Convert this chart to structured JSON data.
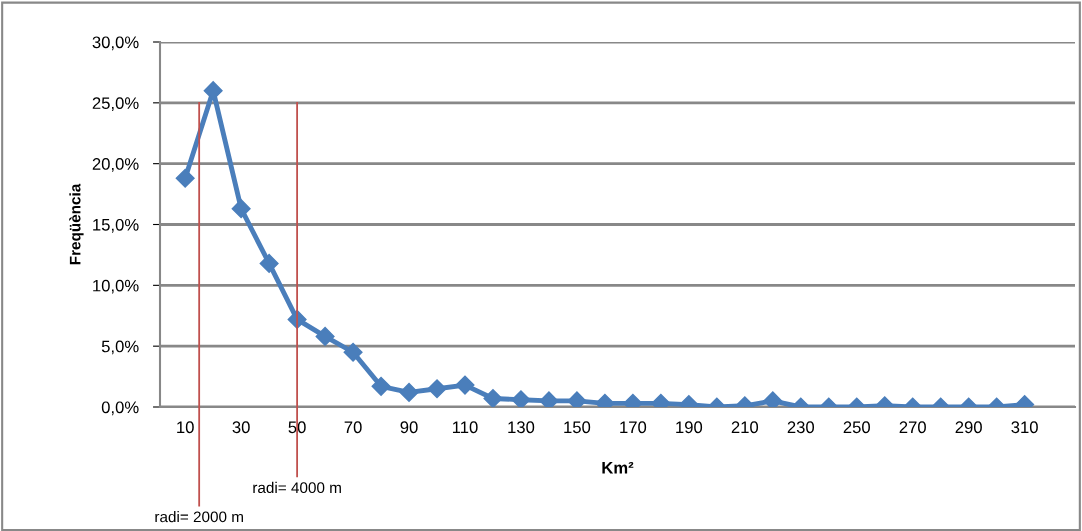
{
  "chart_data": {
    "type": "line",
    "ylabel": "Freqüència",
    "xlabel": "Km²",
    "x": [
      10,
      20,
      30,
      40,
      50,
      60,
      70,
      80,
      90,
      100,
      110,
      120,
      130,
      140,
      150,
      160,
      170,
      180,
      190,
      200,
      210,
      220,
      230,
      240,
      250,
      260,
      270,
      280,
      290,
      300,
      310
    ],
    "series": [
      {
        "color": "#4a7ebb",
        "values": [
          18.8,
          26.0,
          16.3,
          11.8,
          7.2,
          5.8,
          4.5,
          1.7,
          1.2,
          1.5,
          1.8,
          0.7,
          0.6,
          0.5,
          0.5,
          0.3,
          0.3,
          0.3,
          0.2,
          0.0,
          0.1,
          0.5,
          0.0,
          0.0,
          0.0,
          0.1,
          0.0,
          0.0,
          0.0,
          0.0,
          0.2
        ]
      }
    ],
    "xlim": [
      1,
      328
    ],
    "xticks": [
      10,
      30,
      50,
      70,
      90,
      110,
      130,
      150,
      170,
      190,
      210,
      230,
      250,
      270,
      290,
      310
    ],
    "ylim": [
      0,
      30
    ],
    "yticks": [
      {
        "value": 0,
        "label": "0,0%"
      },
      {
        "value": 5,
        "label": "5,0%"
      },
      {
        "value": 10,
        "label": "10,0%"
      },
      {
        "value": 15,
        "label": "15,0%"
      },
      {
        "value": 20,
        "label": "20,0%"
      },
      {
        "value": 25,
        "label": "25,0%"
      },
      {
        "value": 30,
        "label": "30,0%"
      }
    ],
    "ref_lines": [
      {
        "axis": "x",
        "value": 15,
        "color": "#c0504d"
      },
      {
        "axis": "x",
        "value": 50,
        "color": "#c0504d"
      }
    ],
    "annotations": [
      "radi= 2000 m",
      "radi= 4000 m"
    ],
    "grid": "y",
    "marker": "diamond",
    "line_style": "solid",
    "legend": false
  }
}
